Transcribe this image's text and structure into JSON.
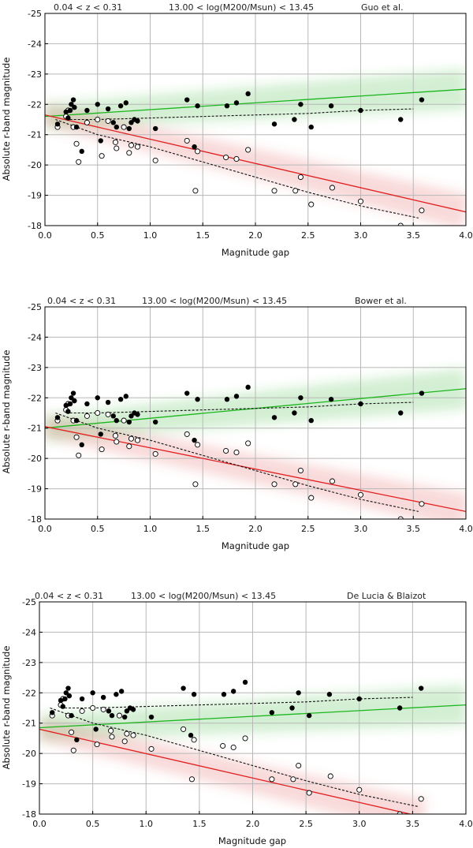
{
  "chart_data": [
    {
      "type": "scatter",
      "header": {
        "redshift": "0.04 < z < 0.31",
        "mass": "13.00 < log(M200/Msun) < 13.45",
        "model": "Guo et al."
      },
      "xlabel": "Magnitude gap",
      "ylabel": "Absolute r-band magnitude",
      "xlim": [
        0.0,
        4.0
      ],
      "ylim": [
        -18,
        -25
      ],
      "x_ticks": [
        "0.0",
        "0.5",
        "1.0",
        "1.5",
        "2.0",
        "2.5",
        "3.0",
        "3.5",
        "4.0"
      ],
      "y_ticks": [
        "-25",
        "-24",
        "-23",
        "-22",
        "-21",
        "-20",
        "-19",
        "-18"
      ],
      "green_fit": {
        "x": [
          0.0,
          4.0
        ],
        "y": [
          -21.6,
          -22.5
        ]
      },
      "red_fit": {
        "x": [
          0.0,
          4.0
        ],
        "y": [
          -21.65,
          -18.45
        ]
      },
      "bright_binned": {
        "x": [
          0.2,
          0.5,
          1.0,
          1.5,
          2.0,
          2.5,
          3.0,
          3.5
        ],
        "y": [
          -21.5,
          -21.5,
          -21.55,
          -21.6,
          -21.65,
          -21.7,
          -21.8,
          -21.85
        ]
      },
      "faint_binned": {
        "x": [
          0.1,
          0.5,
          1.0,
          1.5,
          2.0,
          2.5,
          3.0,
          3.55
        ],
        "y": [
          -21.5,
          -21.0,
          -20.6,
          -20.1,
          -19.6,
          -19.1,
          -18.65,
          -18.25
        ]
      }
    },
    {
      "type": "scatter",
      "header": {
        "redshift": "0.04 < z < 0.31",
        "mass": "13.00 < log(M200/Msun) < 13.45",
        "model": "Bower et al."
      },
      "xlabel": "Magnitude gap",
      "ylabel": "Absolute r-band magnitude",
      "xlim": [
        0.0,
        4.0
      ],
      "ylim": [
        -18,
        -25
      ],
      "x_ticks": [
        "0.0",
        "0.5",
        "1.0",
        "1.5",
        "2.0",
        "2.5",
        "3.0",
        "3.5",
        "4.0"
      ],
      "y_ticks": [
        "-25",
        "-24",
        "-23",
        "-22",
        "-21",
        "-20",
        "-19",
        "-18"
      ],
      "green_fit": {
        "x": [
          0.0,
          4.0
        ],
        "y": [
          -21.0,
          -22.3
        ]
      },
      "red_fit": {
        "x": [
          0.0,
          4.0
        ],
        "y": [
          -21.05,
          -18.25
        ]
      },
      "bright_binned": {
        "x": [
          0.2,
          0.5,
          1.0,
          1.5,
          2.0,
          2.5,
          3.0,
          3.5
        ],
        "y": [
          -21.5,
          -21.5,
          -21.55,
          -21.6,
          -21.65,
          -21.7,
          -21.8,
          -21.85
        ]
      },
      "faint_binned": {
        "x": [
          0.1,
          0.5,
          1.0,
          1.5,
          2.0,
          2.5,
          3.0,
          3.55
        ],
        "y": [
          -21.5,
          -21.0,
          -20.6,
          -20.1,
          -19.6,
          -19.1,
          -18.65,
          -18.25
        ]
      }
    },
    {
      "type": "scatter",
      "header": {
        "redshift": "0.04 < z < 0.31",
        "mass": "13.00 < log(M200/Msun) < 13.45",
        "model": "De Lucia & Blaizot"
      },
      "xlabel": "Magnitude gap",
      "ylabel": "Absolute r-band magnitude",
      "xlim": [
        0.0,
        4.0
      ],
      "ylim": [
        -18,
        -25
      ],
      "x_ticks": [
        "0.0",
        "0.5",
        "1.0",
        "1.5",
        "2.0",
        "2.5",
        "3.0",
        "3.5",
        "4.0"
      ],
      "y_ticks": [
        "-25",
        "-24",
        "-23",
        "-22",
        "-21",
        "-20",
        "-19",
        "-18"
      ],
      "green_fit": {
        "x": [
          0.0,
          4.0
        ],
        "y": [
          -20.85,
          -21.6
        ]
      },
      "red_fit": {
        "x": [
          0.0,
          3.6
        ],
        "y": [
          -20.8,
          -17.9
        ]
      },
      "bright_binned": {
        "x": [
          0.2,
          0.5,
          1.0,
          1.5,
          2.0,
          2.5,
          3.0,
          3.5
        ],
        "y": [
          -21.5,
          -21.5,
          -21.55,
          -21.6,
          -21.65,
          -21.7,
          -21.8,
          -21.85
        ]
      },
      "faint_binned": {
        "x": [
          0.1,
          0.5,
          1.0,
          1.5,
          2.0,
          2.5,
          3.0,
          3.55
        ],
        "y": [
          -21.5,
          -21.0,
          -20.6,
          -20.1,
          -19.6,
          -19.1,
          -18.65,
          -18.25
        ]
      }
    }
  ],
  "observations": {
    "brightest_filled": {
      "x": [
        0.12,
        0.2,
        0.22,
        0.24,
        0.25,
        0.27,
        0.28,
        0.3,
        0.35,
        0.4,
        0.5,
        0.53,
        0.6,
        0.65,
        0.68,
        0.72,
        0.77,
        0.8,
        0.82,
        0.85,
        0.88,
        1.05,
        1.35,
        1.42,
        1.45,
        1.73,
        1.82,
        1.93,
        2.18,
        2.37,
        2.43,
        2.53,
        2.72,
        3.0,
        3.38,
        3.58
      ],
      "y": [
        -21.35,
        -21.75,
        -21.55,
        -21.8,
        -22.0,
        -22.15,
        -21.9,
        -21.25,
        -20.45,
        -21.8,
        -22.0,
        -20.8,
        -21.85,
        -21.4,
        -21.25,
        -21.95,
        -22.05,
        -21.2,
        -21.4,
        -21.5,
        -21.45,
        -21.2,
        -22.15,
        -20.6,
        -21.95,
        -21.95,
        -22.05,
        -22.35,
        -21.35,
        -21.5,
        -22.0,
        -21.25,
        -21.95,
        -21.8,
        -21.5,
        -22.15
      ]
    },
    "second_open": {
      "x": [
        0.12,
        0.2,
        0.22,
        0.27,
        0.3,
        0.32,
        0.4,
        0.5,
        0.54,
        0.6,
        0.67,
        0.68,
        0.75,
        0.8,
        0.82,
        0.88,
        1.05,
        1.35,
        1.43,
        1.45,
        1.72,
        1.82,
        1.93,
        2.18,
        2.38,
        2.43,
        2.53,
        2.73,
        3.0,
        3.38,
        3.58
      ],
      "y": [
        -21.25,
        -21.6,
        -21.8,
        -21.25,
        -20.7,
        -20.1,
        -21.4,
        -21.5,
        -20.3,
        -21.45,
        -20.75,
        -20.55,
        -21.25,
        -20.4,
        -20.65,
        -20.6,
        -20.15,
        -20.8,
        -19.15,
        -20.45,
        -20.25,
        -20.2,
        -20.5,
        -19.15,
        -19.15,
        -19.6,
        -18.7,
        -19.25,
        -18.8,
        -18.0,
        -18.5
      ]
    }
  }
}
